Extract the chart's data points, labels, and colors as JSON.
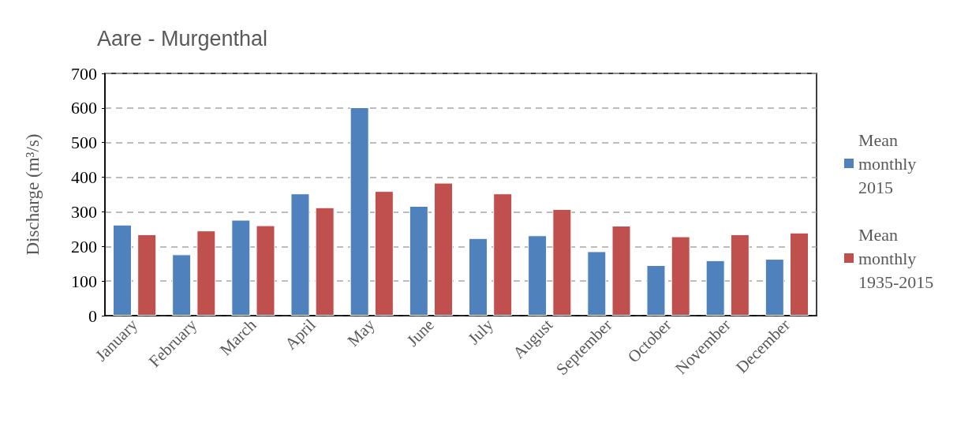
{
  "chart_data": {
    "type": "bar",
    "title": "Aare - Murgenthal",
    "ylabel": "Discharge (m³/s)",
    "categories": [
      "January",
      "February",
      "March",
      "April",
      "May",
      "June",
      "July",
      "August",
      "September",
      "October",
      "November",
      "December"
    ],
    "series": [
      {
        "name": "Mean monthly 2015",
        "color": "#4f81bd",
        "values": [
          263,
          177,
          277,
          353,
          602,
          317,
          224,
          232,
          186,
          146,
          160,
          164
        ]
      },
      {
        "name": "Mean monthly 1935-2015",
        "color": "#c0504d",
        "values": [
          235,
          246,
          261,
          313,
          360,
          384,
          353,
          308,
          260,
          229,
          235,
          240
        ]
      }
    ],
    "ylim": [
      0,
      700
    ],
    "yticks": [
      0,
      100,
      200,
      300,
      400,
      500,
      600,
      700
    ],
    "grid": "y",
    "legend": "right"
  }
}
